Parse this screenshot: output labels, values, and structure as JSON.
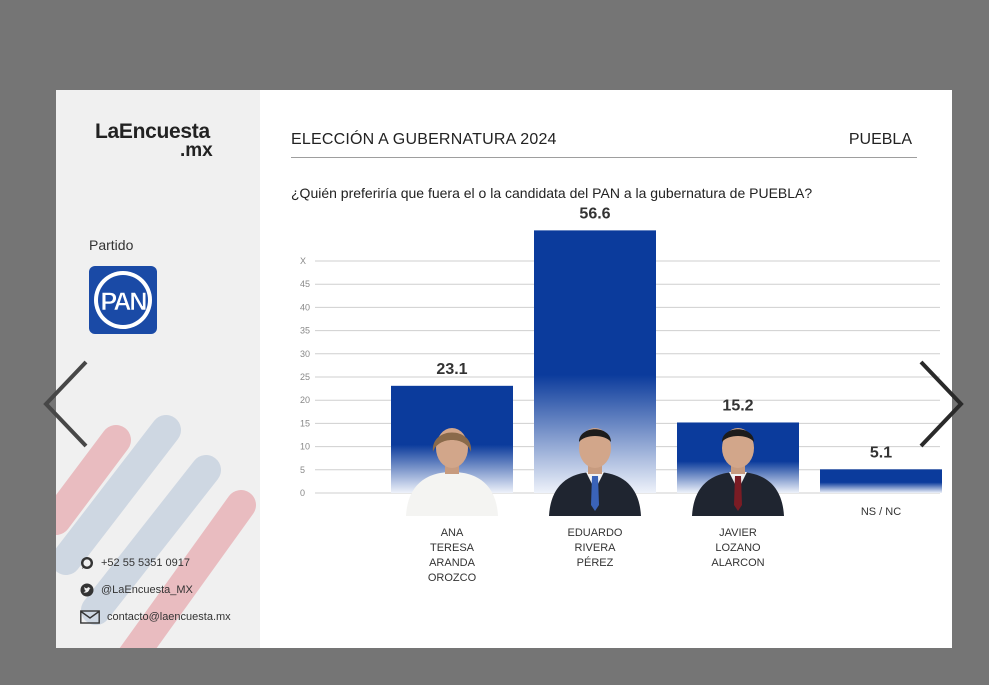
{
  "brand": {
    "name": "LaEncuesta",
    "domain": ".mx"
  },
  "party": {
    "label": "Partido",
    "logo_text": "PAN",
    "logo_color": "#1a4aa6"
  },
  "contacts": [
    {
      "icon": "whatsapp-icon",
      "text": "+52 55 5351 0917"
    },
    {
      "icon": "twitter-icon",
      "text": "@LaEncuesta_MX"
    },
    {
      "icon": "mail-icon",
      "text": "contacto@laencuesta.mx"
    }
  ],
  "header": {
    "title": "ELECCIÓN A GUBERNATURA 2024",
    "region": "PUEBLA"
  },
  "question": "¿Quién preferiría que fuera el o la candidata del PAN a la gubernatura de PUEBLA?",
  "colors": {
    "bar_top": "#0b3b9c",
    "bar_bottom": "#ffffff",
    "grid": "#cfcfcf",
    "stripe_red": "#e8b4b8",
    "stripe_blue": "#c9d3e0"
  },
  "chart_data": {
    "type": "bar",
    "categories": [
      [
        "ANA",
        "TERESA",
        "ARANDA",
        "OROZCO"
      ],
      [
        "EDUARDO",
        "RIVERA",
        "PÉREZ"
      ],
      [
        "JAVIER",
        "LOZANO",
        "ALARCON"
      ],
      [
        "NS / NC"
      ]
    ],
    "values": [
      23.1,
      56.6,
      15.2,
      5.1
    ],
    "value_labels": [
      "23.1",
      "56.6",
      "15.2",
      "5.1"
    ],
    "yticks": [
      "0",
      "5",
      "10",
      "15",
      "20",
      "25",
      "30",
      "35",
      "40",
      "45",
      "X"
    ],
    "ylim": [
      0,
      50
    ],
    "grid": true,
    "candidate_photos": [
      true,
      true,
      true,
      false
    ]
  }
}
